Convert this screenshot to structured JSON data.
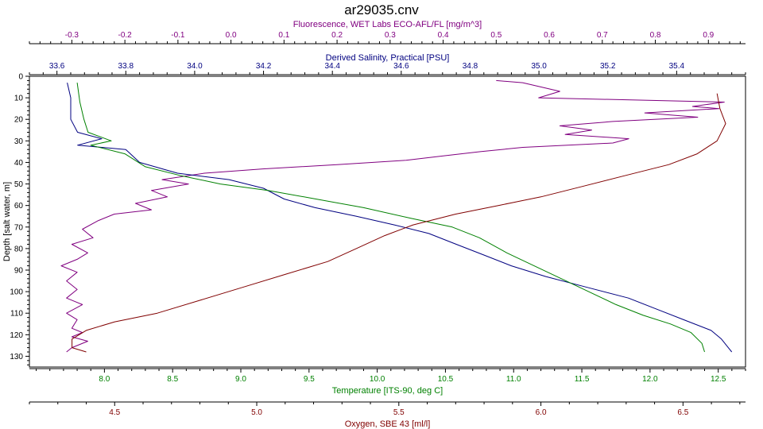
{
  "chart_data": {
    "type": "line",
    "title": "ar29035.cnv",
    "depth_axis": {
      "label": "Depth [salt water, m]",
      "range": [
        0,
        135
      ],
      "ticks": [
        0,
        10,
        20,
        30,
        40,
        50,
        60,
        70,
        80,
        90,
        100,
        110,
        120,
        130
      ],
      "inverted": true
    },
    "axes": {
      "fluorescence": {
        "label": "Fluorescence, WET Labs ECO-AFL/FL [mg/m^3]",
        "color": "#800080",
        "range": [
          -0.38,
          0.97
        ],
        "ticks": [
          -0.3,
          -0.2,
          -0.1,
          0.0,
          0.1,
          0.2,
          0.3,
          0.4,
          0.5,
          0.6,
          0.7,
          0.8,
          0.9
        ],
        "tick_labels": [
          "-0.3",
          "-0.2",
          "-0.1",
          "0.0",
          "0.1",
          "0.2",
          "0.3",
          "0.4",
          "0.5",
          "0.6",
          "0.7",
          "0.8",
          "0.9"
        ]
      },
      "salinity": {
        "label": "Derived Salinity, Practical [PSU]",
        "color": "#000080",
        "range": [
          33.52,
          35.6
        ],
        "ticks": [
          33.6,
          33.8,
          34.0,
          34.2,
          34.4,
          34.6,
          34.8,
          35.0,
          35.2,
          35.4
        ],
        "tick_labels": [
          "33.6",
          "33.8",
          "34.0",
          "34.2",
          "34.4",
          "34.6",
          "34.8",
          "35.0",
          "35.2",
          "35.4"
        ]
      },
      "temperature": {
        "label": "Temperature [ITS-90, deg C]",
        "color": "#008000",
        "range": [
          7.45,
          12.7
        ],
        "ticks": [
          8.0,
          8.5,
          9.0,
          9.5,
          10.0,
          10.5,
          11.0,
          11.5,
          12.0,
          12.5
        ],
        "tick_labels": [
          "8.0",
          "8.5",
          "9.0",
          "9.5",
          "10.0",
          "10.5",
          "11.0",
          "11.5",
          "12.0",
          "12.5"
        ]
      },
      "oxygen": {
        "label": "Oxygen, SBE 43 [ml/l]",
        "color": "#800000",
        "range": [
          4.2,
          6.72
        ],
        "ticks": [
          4.5,
          5.0,
          5.5,
          6.0,
          6.5
        ],
        "tick_labels": [
          "4.5",
          "5.0",
          "5.5",
          "6.0",
          "6.5"
        ]
      }
    },
    "series": [
      {
        "axis": "fluorescence",
        "color": "#800080",
        "points": [
          [
            0.5,
            2
          ],
          [
            0.55,
            3
          ],
          [
            0.62,
            7
          ],
          [
            0.58,
            10
          ],
          [
            0.93,
            12
          ],
          [
            0.87,
            14
          ],
          [
            0.92,
            15
          ],
          [
            0.78,
            17
          ],
          [
            0.88,
            19
          ],
          [
            0.72,
            21
          ],
          [
            0.62,
            23
          ],
          [
            0.68,
            25
          ],
          [
            0.63,
            27
          ],
          [
            0.75,
            29
          ],
          [
            0.72,
            31
          ],
          [
            0.55,
            33
          ],
          [
            0.47,
            35
          ],
          [
            0.4,
            37
          ],
          [
            0.33,
            39
          ],
          [
            0.2,
            41
          ],
          [
            0.06,
            43
          ],
          [
            -0.05,
            45
          ],
          [
            -0.13,
            48
          ],
          [
            -0.08,
            50
          ],
          [
            -0.15,
            53
          ],
          [
            -0.12,
            56
          ],
          [
            -0.18,
            59
          ],
          [
            -0.15,
            62
          ],
          [
            -0.22,
            64
          ],
          [
            -0.25,
            67
          ],
          [
            -0.28,
            71
          ],
          [
            -0.26,
            75
          ],
          [
            -0.3,
            78
          ],
          [
            -0.27,
            82
          ],
          [
            -0.29,
            85
          ],
          [
            -0.32,
            88
          ],
          [
            -0.29,
            91
          ],
          [
            -0.31,
            95
          ],
          [
            -0.29,
            99
          ],
          [
            -0.31,
            103
          ],
          [
            -0.28,
            106
          ],
          [
            -0.31,
            110
          ],
          [
            -0.29,
            113
          ],
          [
            -0.3,
            117
          ],
          [
            -0.28,
            119
          ],
          [
            -0.3,
            121
          ],
          [
            -0.27,
            123
          ],
          [
            -0.3,
            126
          ],
          [
            -0.31,
            128
          ]
        ]
      },
      {
        "axis": "salinity",
        "color": "#000080",
        "points": [
          [
            33.63,
            3
          ],
          [
            33.64,
            10
          ],
          [
            33.64,
            20
          ],
          [
            33.66,
            26
          ],
          [
            33.73,
            29
          ],
          [
            33.66,
            32
          ],
          [
            33.8,
            34
          ],
          [
            33.84,
            40
          ],
          [
            33.95,
            45
          ],
          [
            34.1,
            48
          ],
          [
            34.2,
            52
          ],
          [
            34.26,
            57
          ],
          [
            34.35,
            61
          ],
          [
            34.47,
            65
          ],
          [
            34.58,
            69
          ],
          [
            34.68,
            73
          ],
          [
            34.76,
            78
          ],
          [
            34.84,
            83
          ],
          [
            34.92,
            88
          ],
          [
            35.02,
            93
          ],
          [
            35.14,
            98
          ],
          [
            35.26,
            103
          ],
          [
            35.34,
            108
          ],
          [
            35.42,
            113
          ],
          [
            35.5,
            118
          ],
          [
            35.53,
            122
          ],
          [
            35.55,
            126
          ],
          [
            35.56,
            128
          ]
        ]
      },
      {
        "axis": "temperature",
        "color": "#008000",
        "points": [
          [
            7.8,
            3
          ],
          [
            7.82,
            12
          ],
          [
            7.85,
            20
          ],
          [
            7.88,
            26
          ],
          [
            8.05,
            30
          ],
          [
            7.9,
            32
          ],
          [
            8.15,
            36
          ],
          [
            8.3,
            42
          ],
          [
            8.55,
            46
          ],
          [
            8.85,
            50
          ],
          [
            9.2,
            53
          ],
          [
            9.55,
            57
          ],
          [
            9.9,
            61
          ],
          [
            10.25,
            66
          ],
          [
            10.55,
            70
          ],
          [
            10.75,
            75
          ],
          [
            10.95,
            82
          ],
          [
            11.15,
            88
          ],
          [
            11.35,
            94
          ],
          [
            11.55,
            100
          ],
          [
            11.75,
            106
          ],
          [
            11.95,
            111
          ],
          [
            12.15,
            115
          ],
          [
            12.3,
            119
          ],
          [
            12.38,
            124
          ],
          [
            12.4,
            128
          ]
        ]
      },
      {
        "axis": "oxygen",
        "color": "#800000",
        "points": [
          [
            6.62,
            8
          ],
          [
            6.63,
            15
          ],
          [
            6.65,
            22
          ],
          [
            6.62,
            30
          ],
          [
            6.55,
            36
          ],
          [
            6.45,
            41
          ],
          [
            6.3,
            46
          ],
          [
            6.15,
            51
          ],
          [
            6.0,
            56
          ],
          [
            5.85,
            60
          ],
          [
            5.7,
            64
          ],
          [
            5.55,
            69
          ],
          [
            5.45,
            74
          ],
          [
            5.35,
            80
          ],
          [
            5.25,
            86
          ],
          [
            5.1,
            92
          ],
          [
            4.95,
            98
          ],
          [
            4.8,
            104
          ],
          [
            4.65,
            110
          ],
          [
            4.5,
            114
          ],
          [
            4.4,
            118
          ],
          [
            4.35,
            122
          ],
          [
            4.35,
            126
          ],
          [
            4.4,
            128
          ]
        ]
      }
    ]
  }
}
